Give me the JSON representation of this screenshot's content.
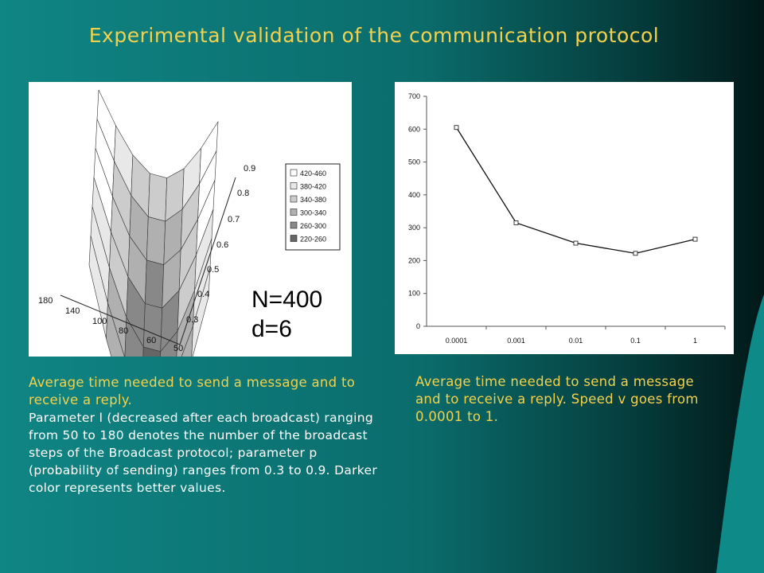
{
  "title": "Experimental validation of the communication protocol",
  "left_caption": {
    "line_1": "Average time needed to send a message and to receive a reply.",
    "line_2": "Parameter l (decreased after each broadcast) ranging from 50 to 180 denotes the number of the broadcast steps of the Broadcast  protocol; parameter p (probability of sending) ranges  from 0.3 to 0.9. Darker color represents better values."
  },
  "right_caption": {
    "text": "Average time needed to send a message and to receive a reply. Speed v goes from 0.0001 to 1."
  },
  "chart_data": [
    {
      "type": "surface",
      "l_ticks": [
        "180",
        "140",
        "100",
        "80",
        "60",
        "50"
      ],
      "p_ticks": [
        "0.9",
        "0.8",
        "0.7",
        "0.6",
        "0.5",
        "0.4",
        "0.3"
      ],
      "legend": [
        {
          "label": "420-460",
          "color": "#ffffff"
        },
        {
          "label": "380-420",
          "color": "#e8e8e8"
        },
        {
          "label": "340-380",
          "color": "#cccccc"
        },
        {
          "label": "300-340",
          "color": "#b0b0b0"
        },
        {
          "label": "260-300",
          "color": "#888888"
        },
        {
          "label": "220-260",
          "color": "#666666"
        }
      ],
      "annotation_1": "N=400",
      "annotation_2": "d=6"
    },
    {
      "type": "line",
      "categories": [
        "0.0001",
        "0.001",
        "0.01",
        "0.1",
        "1"
      ],
      "values": [
        605,
        315,
        253,
        222,
        265
      ],
      "yticks": [
        "0",
        "100",
        "200",
        "300",
        "400",
        "500",
        "600",
        "700"
      ],
      "ylim": [
        0,
        700
      ],
      "grid": false
    }
  ]
}
